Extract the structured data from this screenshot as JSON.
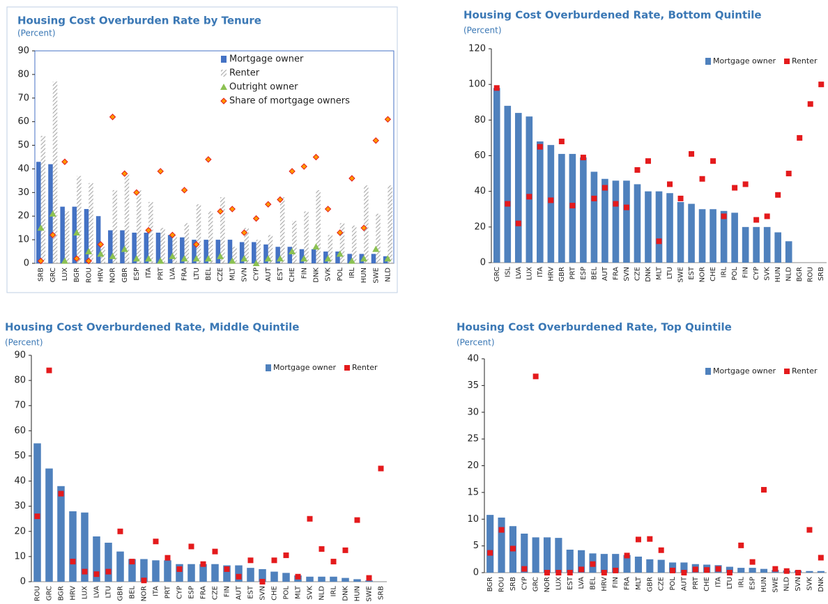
{
  "chart_data": [
    {
      "type": "bar",
      "title": "Housing Cost Overburden Rate by Tenure",
      "subtitle": "(Percent)",
      "categories": [
        "SRB",
        "GRC",
        "LUX",
        "BGR",
        "ROU",
        "HRV",
        "NOR",
        "GBR",
        "ESP",
        "ITA",
        "PRT",
        "LVA",
        "FRA",
        "LTU",
        "BEL",
        "CZE",
        "MLT",
        "SVN",
        "CYP",
        "AUT",
        "EST",
        "CHE",
        "FIN",
        "DNK",
        "SVK",
        "POL",
        "IRL",
        "HUN",
        "SWE",
        "NLD"
      ],
      "series": [
        {
          "name": "Mortgage owner",
          "kind": "bar",
          "color": "#4472c4",
          "values": [
            43,
            42,
            24,
            24,
            23,
            20,
            14,
            14,
            13,
            13,
            13,
            12,
            11,
            10,
            10,
            10,
            10,
            9,
            9,
            8,
            7,
            7,
            6,
            6,
            5,
            5,
            4,
            4,
            4,
            3
          ]
        },
        {
          "name": "Renter",
          "kind": "bar",
          "hatch": true,
          "color": "#a6a6a6",
          "values": [
            54,
            77,
            22,
            37,
            34,
            7,
            31,
            38,
            31,
            26,
            15,
            12,
            17,
            25,
            22,
            28,
            7,
            15,
            10,
            12,
            28,
            18,
            22,
            31,
            12,
            17,
            16,
            33,
            21,
            33
          ]
        },
        {
          "name": "Outright owner",
          "kind": "marker",
          "marker": "triangle",
          "color": "#8cc152",
          "values": [
            15,
            21,
            1,
            13,
            5,
            4,
            3,
            6,
            2,
            2,
            1,
            3,
            2,
            2,
            2,
            3,
            1,
            2,
            0,
            2,
            2,
            5,
            2,
            7,
            2,
            4,
            1,
            2,
            6,
            2
          ]
        },
        {
          "name": "Share of mortgage owners",
          "kind": "marker",
          "marker": "diamond",
          "color": "#ff9900",
          "values": [
            1,
            12,
            43,
            2,
            1,
            8,
            62,
            38,
            30,
            14,
            39,
            12,
            31,
            8,
            44,
            22,
            23,
            13,
            19,
            25,
            27,
            39,
            41,
            45,
            23,
            13,
            36,
            15,
            52,
            61
          ]
        }
      ],
      "ylim": [
        0,
        90
      ],
      "yticks": [
        0,
        10,
        20,
        30,
        40,
        50,
        60,
        70,
        80,
        90
      ],
      "legend": "upper right",
      "legend_layout": "vertical",
      "frame": true
    },
    {
      "type": "bar",
      "title": "Housing Cost Overburdened Rate, Bottom Quintile",
      "subtitle": "(Percent)",
      "categories": [
        "GRC",
        "ISL",
        "LVA",
        "LUX",
        "ITA",
        "HRV",
        "GBR",
        "PRT",
        "ESP",
        "BEL",
        "AUT",
        "FRA",
        "SVN",
        "CZE",
        "DNK",
        "MLT",
        "LTU",
        "SWE",
        "EST",
        "NOR",
        "CHE",
        "IRL",
        "POL",
        "FIN",
        "CYP",
        "SVK",
        "HUN",
        "NLD",
        "BGR",
        "ROU",
        "SRB"
      ],
      "series": [
        {
          "name": "Mortgage owner",
          "kind": "bar",
          "color": "#4f81bd",
          "values": [
            98,
            88,
            84,
            82,
            68,
            66,
            61,
            61,
            59,
            51,
            47,
            46,
            46,
            44,
            40,
            40,
            39,
            34,
            33,
            30,
            30,
            29,
            28,
            20,
            20,
            20,
            17,
            12,
            null,
            null,
            null
          ]
        },
        {
          "name": "Renter",
          "kind": "marker",
          "marker": "square",
          "color": "#e41a1c",
          "values": [
            98,
            33,
            22,
            37,
            65,
            35,
            68,
            32,
            59,
            36,
            42,
            33,
            31,
            52,
            57,
            12,
            44,
            36,
            61,
            47,
            57,
            26,
            42,
            44,
            24,
            26,
            38,
            50,
            70,
            89,
            100
          ]
        }
      ],
      "ylim": [
        0,
        120
      ],
      "yticks": [
        0,
        20,
        40,
        60,
        80,
        100,
        120
      ],
      "legend": "upper right",
      "legend_layout": "horizontal",
      "frame": false
    },
    {
      "type": "bar",
      "title": "Housing Cost Overburdened Rate, Middle Quintile",
      "subtitle": "(Percent)",
      "categories": [
        "ROU",
        "GRC",
        "BGR",
        "HRV",
        "LUX",
        "LVA",
        "LTU",
        "GBR",
        "BEL",
        "NOR",
        "ITA",
        "PRT",
        "CYP",
        "ESP",
        "FRA",
        "CZE",
        "FIN",
        "AUT",
        "EST",
        "SVN",
        "CHE",
        "POL",
        "MLT",
        "SVK",
        "NLD",
        "IRL",
        "DNK",
        "HUN",
        "SWE",
        "SRB"
      ],
      "series": [
        {
          "name": "Mortgage owner",
          "kind": "bar",
          "color": "#4f81bd",
          "values": [
            55,
            45,
            38,
            28,
            27.5,
            18,
            15.5,
            12,
            9,
            9,
            8.5,
            8.5,
            7,
            7,
            7,
            7,
            6.5,
            6.5,
            5.5,
            5,
            4,
            3.5,
            2.5,
            2,
            2,
            2,
            1.5,
            1,
            0.5,
            null
          ]
        },
        {
          "name": "Renter",
          "kind": "marker",
          "marker": "square",
          "color": "#e41a1c",
          "values": [
            26,
            84,
            35,
            8,
            4,
            3,
            4,
            20,
            8,
            0.5,
            16,
            9.5,
            5,
            14,
            7,
            12,
            5,
            2,
            8.5,
            0,
            8.5,
            10.5,
            2,
            25,
            13,
            8,
            12.5,
            24.5,
            1.5,
            45
          ]
        }
      ],
      "ylim": [
        0,
        90
      ],
      "yticks": [
        0,
        10,
        20,
        30,
        40,
        50,
        60,
        70,
        80,
        90
      ],
      "legend": "upper right",
      "legend_layout": "horizontal",
      "frame": false
    },
    {
      "type": "bar",
      "title": "Housing Cost Overburdened Rate, Top Quintile",
      "subtitle": "(Percent)",
      "categories": [
        "BGR",
        "ROU",
        "SRB",
        "CYP",
        "GRC",
        "NOR",
        "LUX",
        "EST",
        "LVA",
        "BEL",
        "HRV",
        "FIN",
        "FRA",
        "MLT",
        "GBR",
        "CZE",
        "POL",
        "AUT",
        "PRT",
        "CHE",
        "ITA",
        "LTU",
        "IRL",
        "ESP",
        "HUN",
        "SWE",
        "NLD",
        "SVN",
        "SVK",
        "DNK"
      ],
      "series": [
        {
          "name": "Mortgage owner",
          "kind": "bar",
          "color": "#4f81bd",
          "values": [
            10.8,
            10.3,
            8.7,
            7.3,
            6.6,
            6.6,
            6.5,
            4.3,
            4.2,
            3.6,
            3.5,
            3.5,
            3.3,
            3.0,
            2.5,
            2.4,
            1.9,
            1.9,
            1.6,
            1.5,
            1.4,
            1.1,
            0.9,
            0.9,
            0.7,
            0.5,
            0.4,
            0.4,
            0.3,
            0.3
          ]
        },
        {
          "name": "Renter",
          "kind": "marker",
          "marker": "square",
          "color": "#e41a1c",
          "values": [
            3.7,
            8,
            4.5,
            0.7,
            36.7,
            0,
            0,
            0,
            0.6,
            1.6,
            0,
            0.4,
            3.2,
            6.2,
            6.3,
            4.2,
            0.4,
            0,
            0.6,
            0.5,
            0.7,
            0,
            5.1,
            2,
            15.5,
            0.7,
            0.3,
            0,
            8,
            2.8
          ]
        }
      ],
      "ylim": [
        0,
        40
      ],
      "yticks": [
        0,
        5,
        10,
        15,
        20,
        25,
        30,
        35,
        40
      ],
      "legend": "upper right",
      "legend_layout": "horizontal",
      "frame": false
    }
  ]
}
